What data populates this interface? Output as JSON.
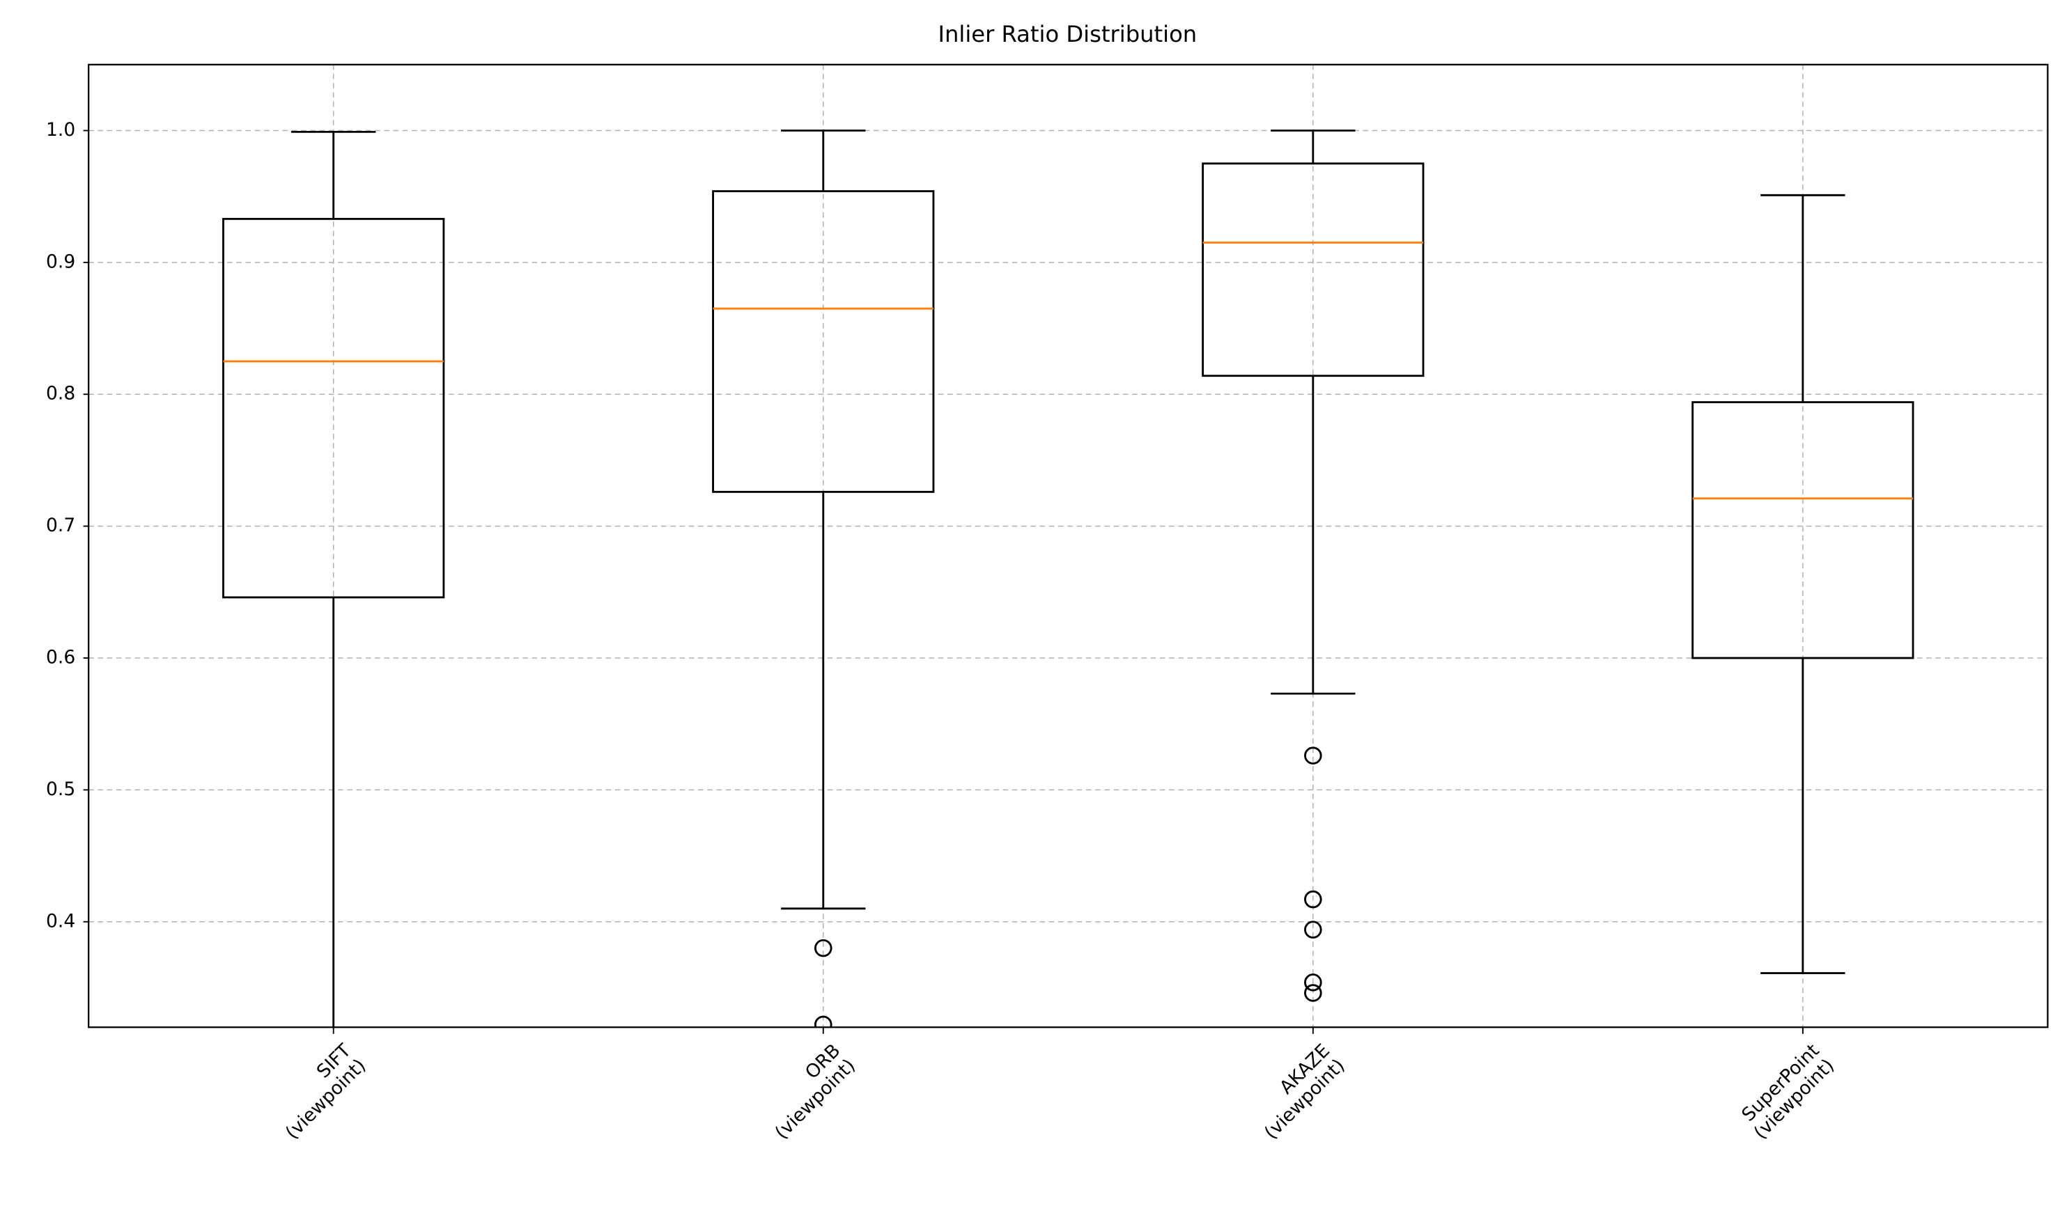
{
  "chart_data": {
    "type": "box",
    "title": "Inlier Ratio Distribution",
    "categories": [
      "SIFT\n(viewpoint)",
      "ORB\n(viewpoint)",
      "AKAZE\n(viewpoint)",
      "SuperPoint\n(viewpoint)"
    ],
    "boxes": [
      {
        "whislo": 0.3,
        "q1": 0.646,
        "med": 0.825,
        "q3": 0.933,
        "whishi": 0.999,
        "fliers": []
      },
      {
        "whislo": 0.41,
        "q1": 0.726,
        "med": 0.865,
        "q3": 0.954,
        "whishi": 1.0,
        "fliers": [
          0.38,
          0.322
        ]
      },
      {
        "whislo": 0.573,
        "q1": 0.814,
        "med": 0.915,
        "q3": 0.975,
        "whishi": 1.0,
        "fliers": [
          0.526,
          0.417,
          0.394,
          0.354,
          0.346
        ]
      },
      {
        "whislo": 0.361,
        "q1": 0.6,
        "med": 0.721,
        "q3": 0.794,
        "whishi": 0.951,
        "fliers": []
      }
    ],
    "box_color": "#000000",
    "median_color": "#ff7f0e",
    "ylim": [
      0.32,
      1.05
    ],
    "yticks": [
      0.4,
      0.5,
      0.6,
      0.7,
      0.8,
      0.9,
      {
        "value": 1.0,
        "label": "1.0"
      }
    ],
    "grid": true
  }
}
